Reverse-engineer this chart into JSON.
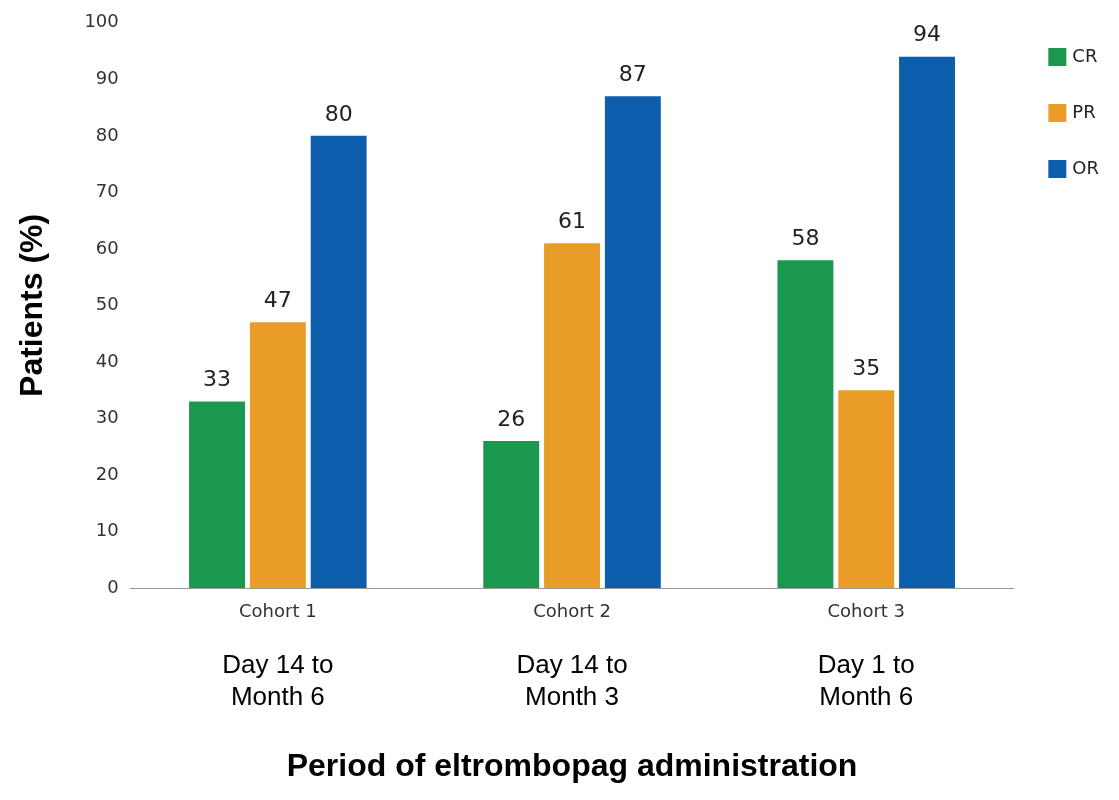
{
  "chart_data": {
    "type": "bar",
    "xlabel": "Period of eltrombopag administration",
    "ylabel": "Patients (%)",
    "categories": [
      "Cohort 1",
      "Cohort 2",
      "Cohort 3"
    ],
    "series": [
      {
        "name": "CR",
        "color": "#1a9850",
        "values": [
          33,
          26,
          58
        ]
      },
      {
        "name": "PR",
        "color": "#e99c27",
        "values": [
          47,
          61,
          35
        ]
      },
      {
        "name": "OR",
        "color": "#0d5ead",
        "values": [
          80,
          87,
          94
        ]
      }
    ],
    "ylim": [
      0,
      100
    ],
    "yticks": [
      0,
      10,
      20,
      30,
      40,
      50,
      60,
      70,
      80,
      90,
      100
    ],
    "grid": false,
    "legend": "right",
    "data_labels": true,
    "annotations": [
      "Day 14 to Month 6",
      "Day 14 to Month 3",
      "Day 1 to Month 6"
    ]
  }
}
